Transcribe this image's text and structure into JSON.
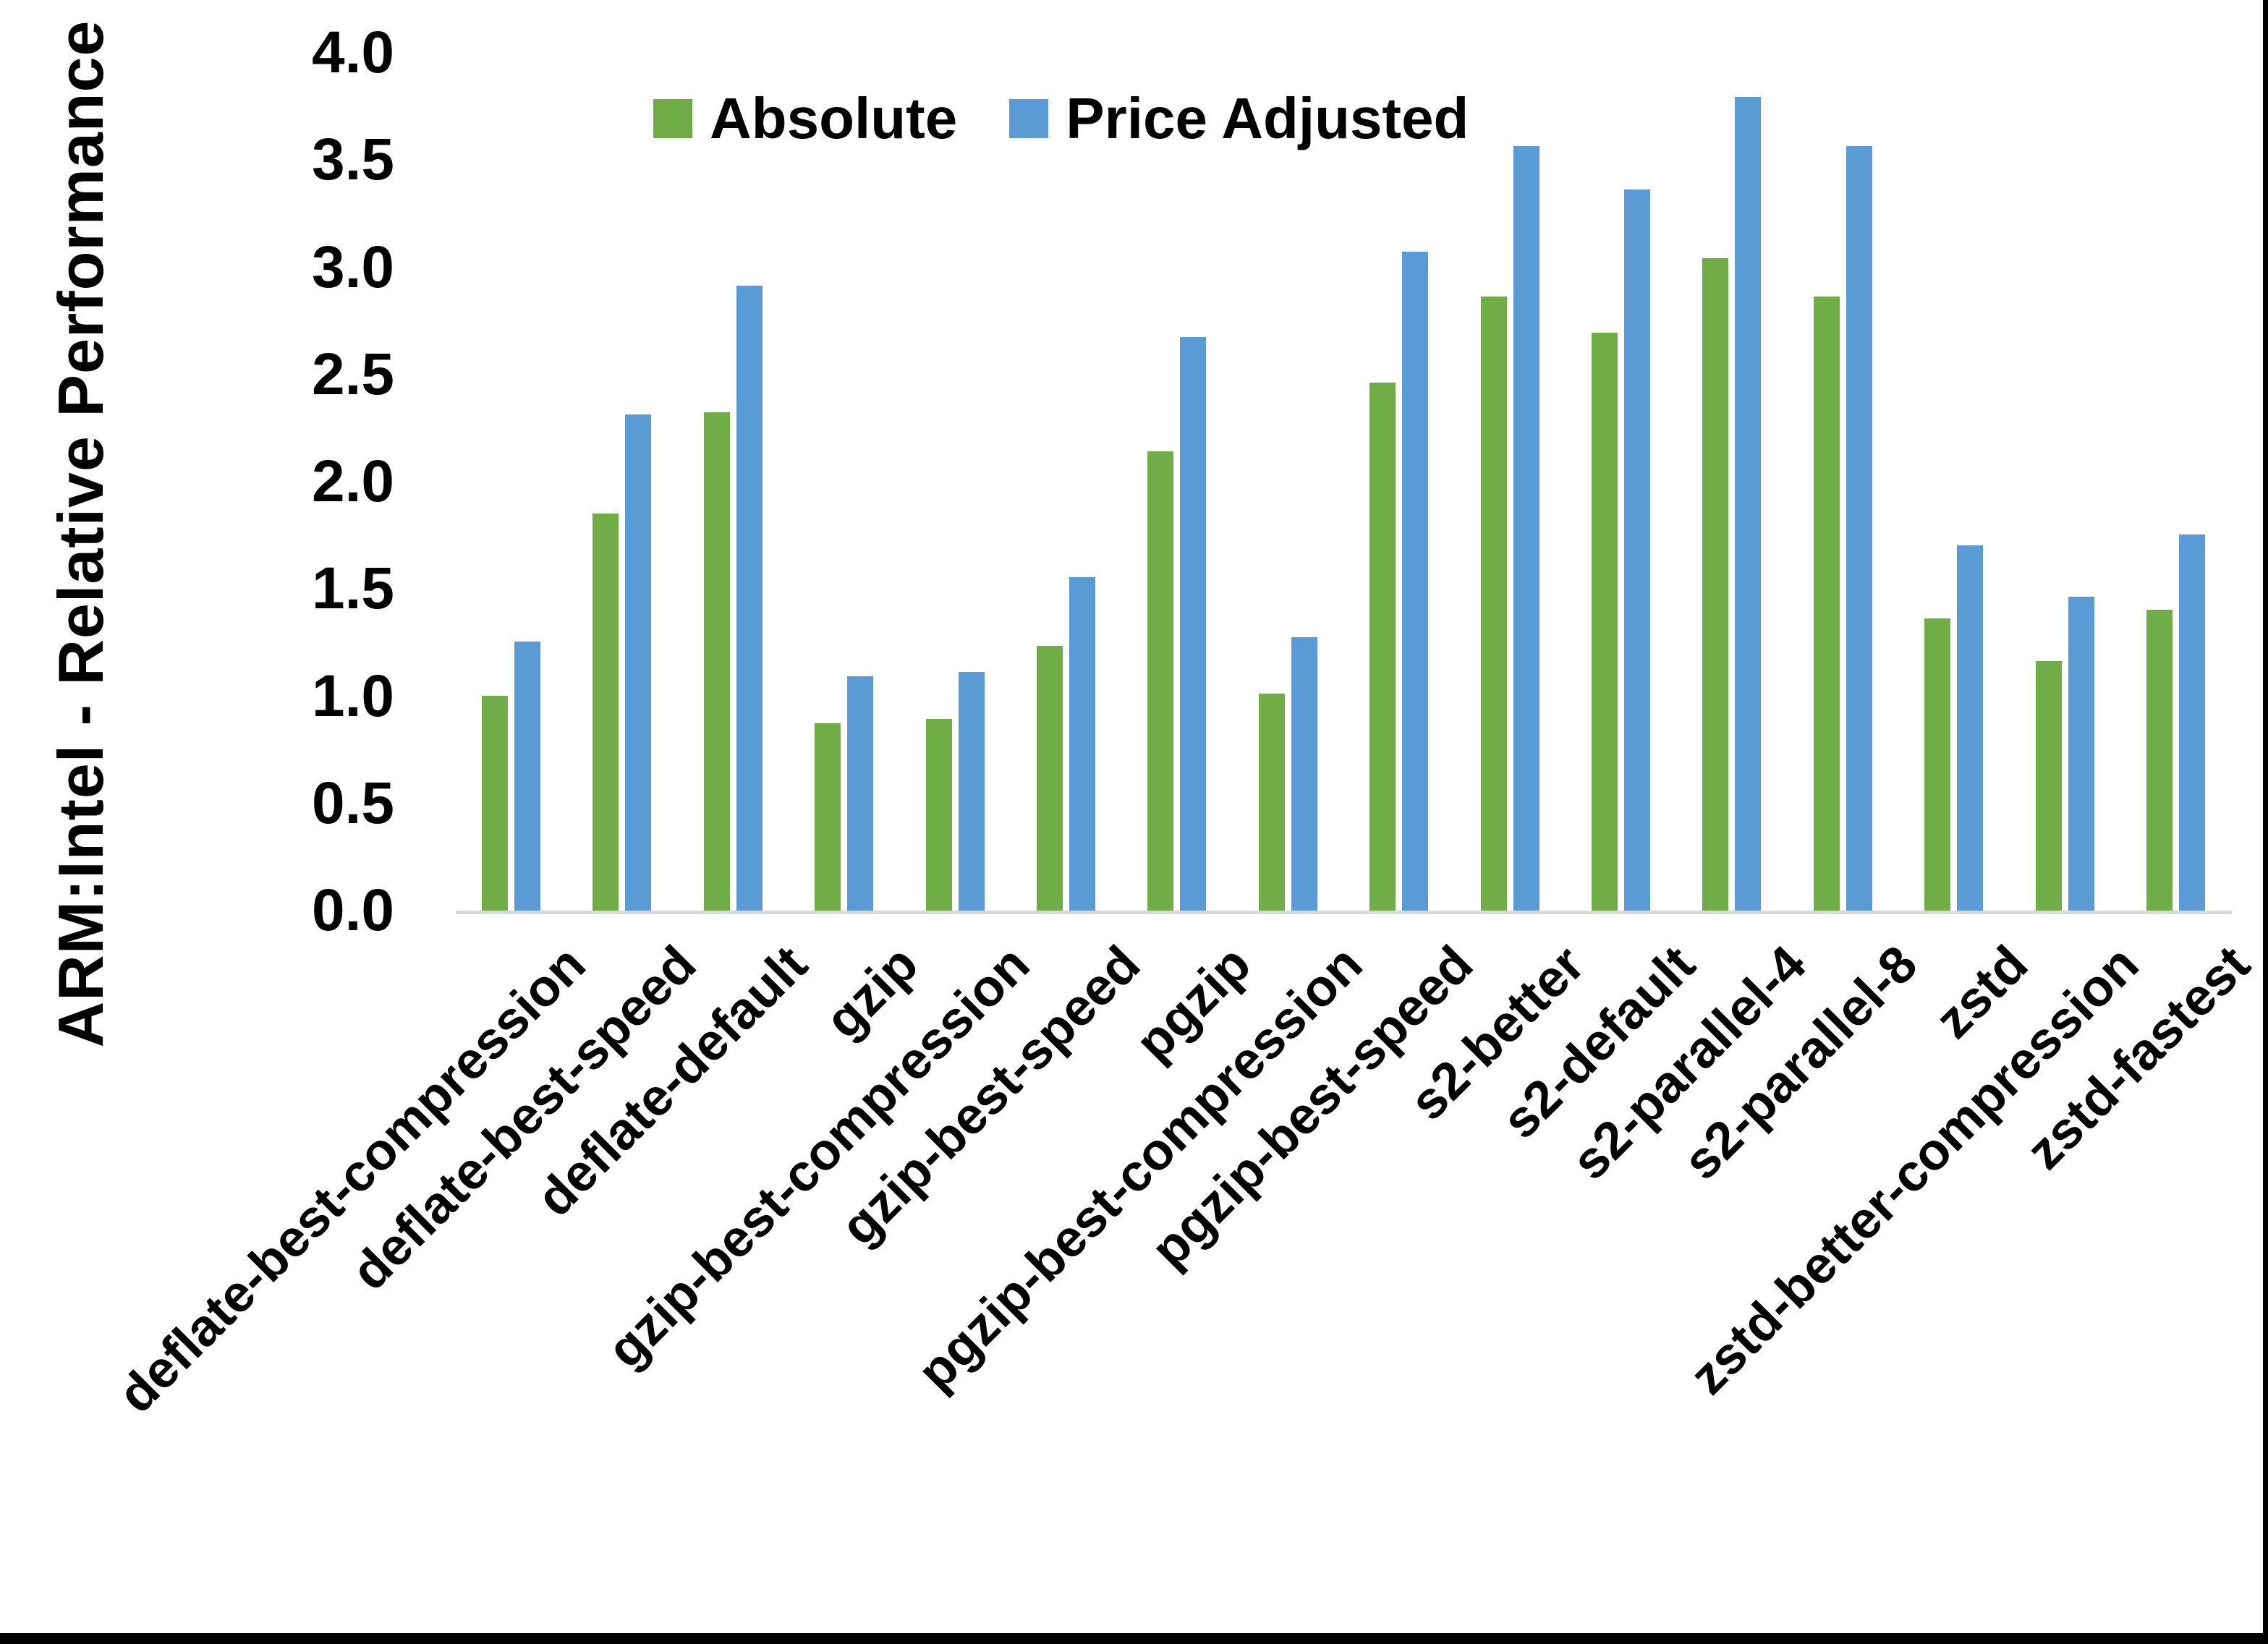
{
  "y_axis_title": "ARM:Intel - Relative Performance",
  "legend": [
    {
      "label": "Absolute",
      "color": "#70AD47"
    },
    {
      "label": "Price Adjusted",
      "color": "#5B9BD5"
    }
  ],
  "colors": {
    "absolute_green": "#70AD47",
    "price_adjusted_blue": "#5B9BD5",
    "axis_line_gray": "#D9D9D9",
    "text_black": "#000000"
  },
  "chart_data": {
    "type": "bar",
    "title": "",
    "xlabel": "",
    "ylabel": "ARM:Intel - Relative Performance",
    "ylim": [
      0.0,
      4.0
    ],
    "y_ticks": [
      "0.0",
      "0.5",
      "1.0",
      "1.5",
      "2.0",
      "2.5",
      "3.0",
      "3.5",
      "4.0"
    ],
    "grid": false,
    "legend_position": "top",
    "categories": [
      "deflate-best-compression",
      "deflate-best-speed",
      "deflate-default",
      "gzip",
      "gzip-best-compression",
      "gzip-best-speed",
      "pgzip",
      "pgzip-best-compression",
      "pgzip-best-speed",
      "s2-better",
      "s2-default",
      "s2-parallel-4",
      "s2-parallel-8",
      "zstd",
      "zstd-better-compression",
      "zstd-fastest"
    ],
    "series": [
      {
        "name": "Absolute",
        "color": "#70AD47",
        "values": [
          1.01,
          1.86,
          2.33,
          0.88,
          0.9,
          1.24,
          2.15,
          1.02,
          2.47,
          2.87,
          2.7,
          3.05,
          2.87,
          1.37,
          1.17,
          1.41
        ]
      },
      {
        "name": "Price Adjusted",
        "color": "#5B9BD5",
        "values": [
          1.26,
          2.32,
          2.92,
          1.1,
          1.12,
          1.56,
          2.68,
          1.28,
          3.08,
          3.57,
          3.37,
          3.8,
          3.57,
          1.71,
          1.47,
          1.76
        ]
      }
    ]
  }
}
